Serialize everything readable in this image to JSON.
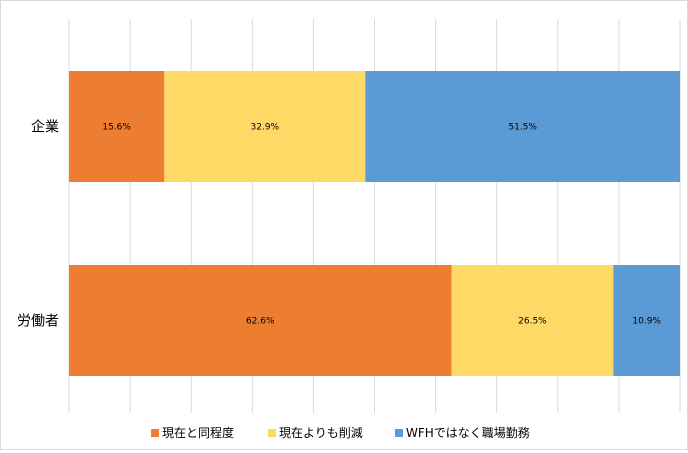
{
  "chart_data": {
    "type": "bar",
    "orientation": "horizontal",
    "stacked": "percent",
    "categories": [
      "企業",
      "労働者"
    ],
    "series": [
      {
        "name": "現在と同程度",
        "color": "#ED7D31",
        "values": [
          15.6,
          62.6
        ],
        "labels": [
          "15.6%",
          "62.6%"
        ]
      },
      {
        "name": "現在よりも削減",
        "color": "#FFD966",
        "values": [
          32.9,
          26.5
        ],
        "labels": [
          "32.9%",
          "26.5%"
        ]
      },
      {
        "name": "WFHではなく職場勤務",
        "color": "#5B9BD5",
        "values": [
          51.5,
          10.9
        ],
        "labels": [
          "51.5%",
          "10.9%"
        ]
      }
    ],
    "xlim": [
      0,
      100
    ],
    "grid": true,
    "legend_position": "bottom"
  }
}
